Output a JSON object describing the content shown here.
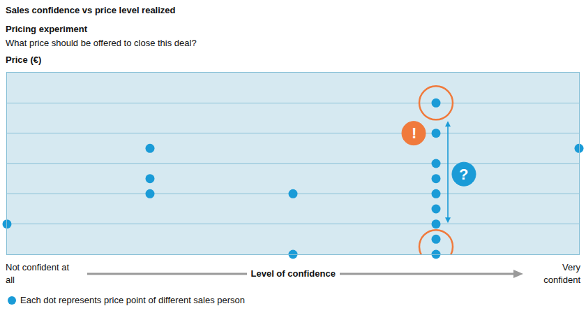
{
  "chart_data": {
    "type": "scatter",
    "title": "Sales confidence vs price level realized",
    "subtitle": [
      "Pricing experiment",
      "What price should be offered to close this deal?"
    ],
    "y_label": "Price (€)",
    "x_label": "Level of confidence",
    "xlim": [
      0,
      4
    ],
    "xticks": [
      {
        "value": 0,
        "label": "Not confident at all"
      },
      {
        "value": 4,
        "label": "Very confident"
      }
    ],
    "ylim": [
      0,
      6
    ],
    "yticks": [
      1,
      2,
      3,
      4,
      5
    ],
    "tick_labels": "x",
    "grid": "y",
    "legend": "bottom-left",
    "annotations": [
      {
        "text": "!"
      },
      {
        "text": "?"
      }
    ],
    "series": [
      {
        "name": "Each dot represents price point of different sales person",
        "color": "#1a9bd7",
        "marker": "circle",
        "x": [
          0,
          1,
          1,
          1,
          2,
          2,
          3,
          3,
          3,
          3,
          3,
          3,
          3,
          3,
          3,
          4
        ],
        "values": [
          1,
          3.5,
          2.5,
          2,
          2,
          0,
          5,
          4,
          3,
          2.5,
          2,
          1.5,
          1,
          0.5,
          0,
          3.5
        ]
      }
    ]
  }
}
